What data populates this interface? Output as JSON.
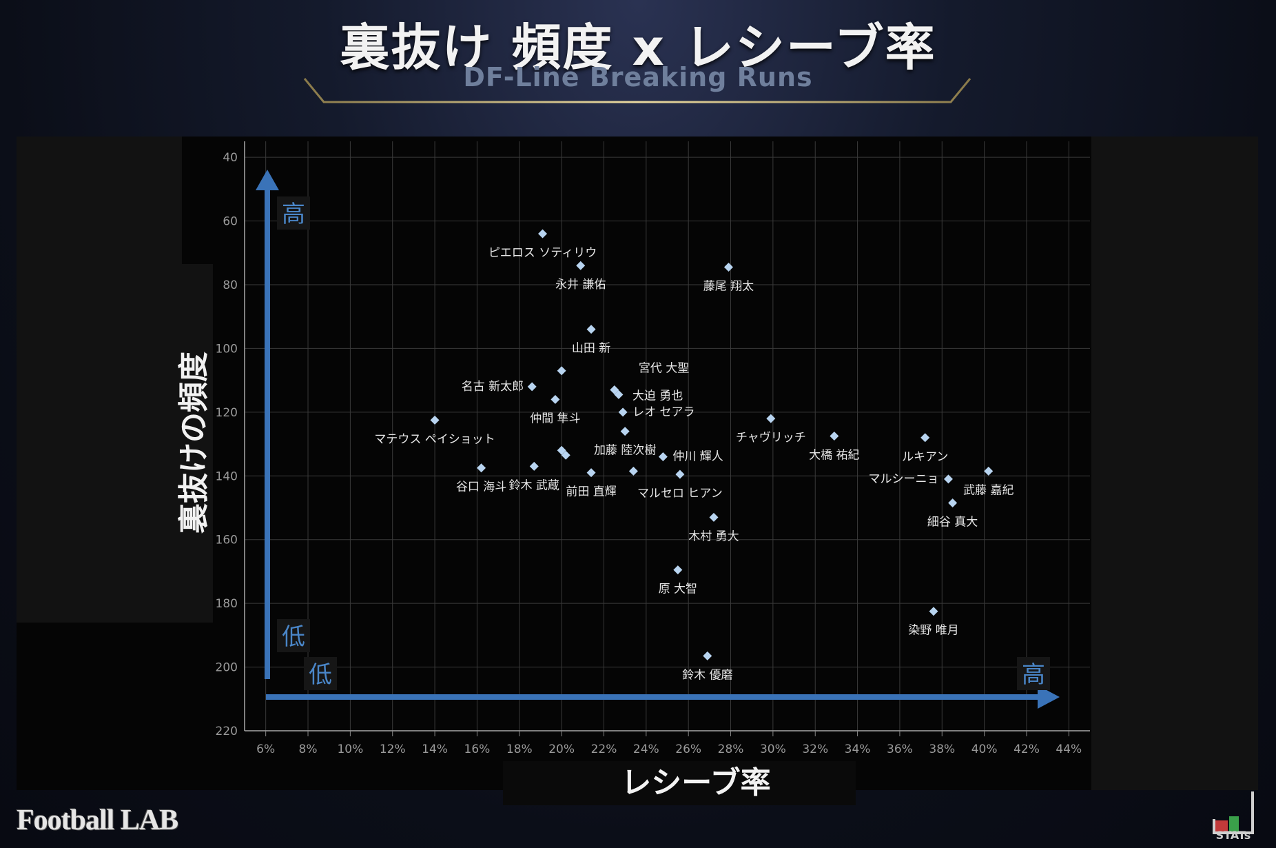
{
  "header": {
    "title": "裏抜け 頻度 x レシーブ率",
    "subtitle": "DF-Line Breaking Runs"
  },
  "branding": {
    "footballlab": "Football LAB",
    "stats": "STATs"
  },
  "annotations": {
    "y_high": "高",
    "y_low": "低",
    "x_low": "低",
    "x_high": "高"
  },
  "colors": {
    "point": "#b8d4f0",
    "arrow": "#3a73b8",
    "annotation_text": "#4a86c8",
    "grid": "#3a3a3a",
    "label": "#e6e6e6"
  },
  "chart_data": {
    "type": "scatter",
    "xlabel": "レシーブ率",
    "ylabel": "裏抜けの頻度",
    "xlim": [
      0.05,
      0.45
    ],
    "ylim": [
      35,
      220
    ],
    "y_inverted": true,
    "x_ticks": [
      "6%",
      "8%",
      "10%",
      "12%",
      "14%",
      "16%",
      "18%",
      "20%",
      "22%",
      "24%",
      "26%",
      "28%",
      "30%",
      "32%",
      "34%",
      "36%",
      "38%",
      "40%",
      "42%",
      "44%"
    ],
    "y_ticks": [
      "40",
      "60",
      "80",
      "100",
      "120",
      "140",
      "160",
      "180",
      "200",
      "220"
    ],
    "grid": true,
    "points": [
      {
        "name": "ピエロス ソティリウ",
        "x": 0.191,
        "y": 64
      },
      {
        "name": "永井 謙佑",
        "x": 0.209,
        "y": 74
      },
      {
        "name": "藤尾 翔太",
        "x": 0.279,
        "y": 74.5
      },
      {
        "name": "山田 新",
        "x": 0.214,
        "y": 94
      },
      {
        "name": "",
        "x": 0.2,
        "y": 107
      },
      {
        "name": "宮代 大聖",
        "x": 0.225,
        "y": 113
      },
      {
        "name": "大迫 勇也",
        "x": 0.227,
        "y": 114.5
      },
      {
        "name": "名古 新太郎",
        "x": 0.186,
        "y": 112
      },
      {
        "name": "仲間 隼斗",
        "x": 0.197,
        "y": 116
      },
      {
        "name": "レオ セアラ",
        "x": 0.229,
        "y": 120
      },
      {
        "name": "マテウス ペイショット",
        "x": 0.14,
        "y": 122.5
      },
      {
        "name": "チャヴリッチ",
        "x": 0.299,
        "y": 122
      },
      {
        "name": "加藤 陸次樹",
        "x": 0.23,
        "y": 126
      },
      {
        "name": "大橋 祐紀",
        "x": 0.329,
        "y": 127.5
      },
      {
        "name": "ルキアン",
        "x": 0.372,
        "y": 128
      },
      {
        "name": "",
        "x": 0.2,
        "y": 132
      },
      {
        "name": "",
        "x": 0.202,
        "y": 133.5
      },
      {
        "name": "仲川 輝人",
        "x": 0.248,
        "y": 134
      },
      {
        "name": "谷口 海斗",
        "x": 0.162,
        "y": 137.5
      },
      {
        "name": "鈴木 武蔵",
        "x": 0.187,
        "y": 137
      },
      {
        "name": "前田 直輝",
        "x": 0.214,
        "y": 139
      },
      {
        "name": "",
        "x": 0.234,
        "y": 138.5
      },
      {
        "name": "マルセロ ヒアン",
        "x": 0.256,
        "y": 139.5
      },
      {
        "name": "武藤 嘉紀",
        "x": 0.402,
        "y": 138.5
      },
      {
        "name": "マルシーニョ",
        "x": 0.383,
        "y": 141
      },
      {
        "name": "細谷 真大",
        "x": 0.385,
        "y": 148.5
      },
      {
        "name": "木村 勇大",
        "x": 0.272,
        "y": 153
      },
      {
        "name": "原 大智",
        "x": 0.255,
        "y": 169.5
      },
      {
        "name": "染野 唯月",
        "x": 0.376,
        "y": 182.5
      },
      {
        "name": "鈴木 優磨",
        "x": 0.269,
        "y": 196.5
      }
    ]
  }
}
